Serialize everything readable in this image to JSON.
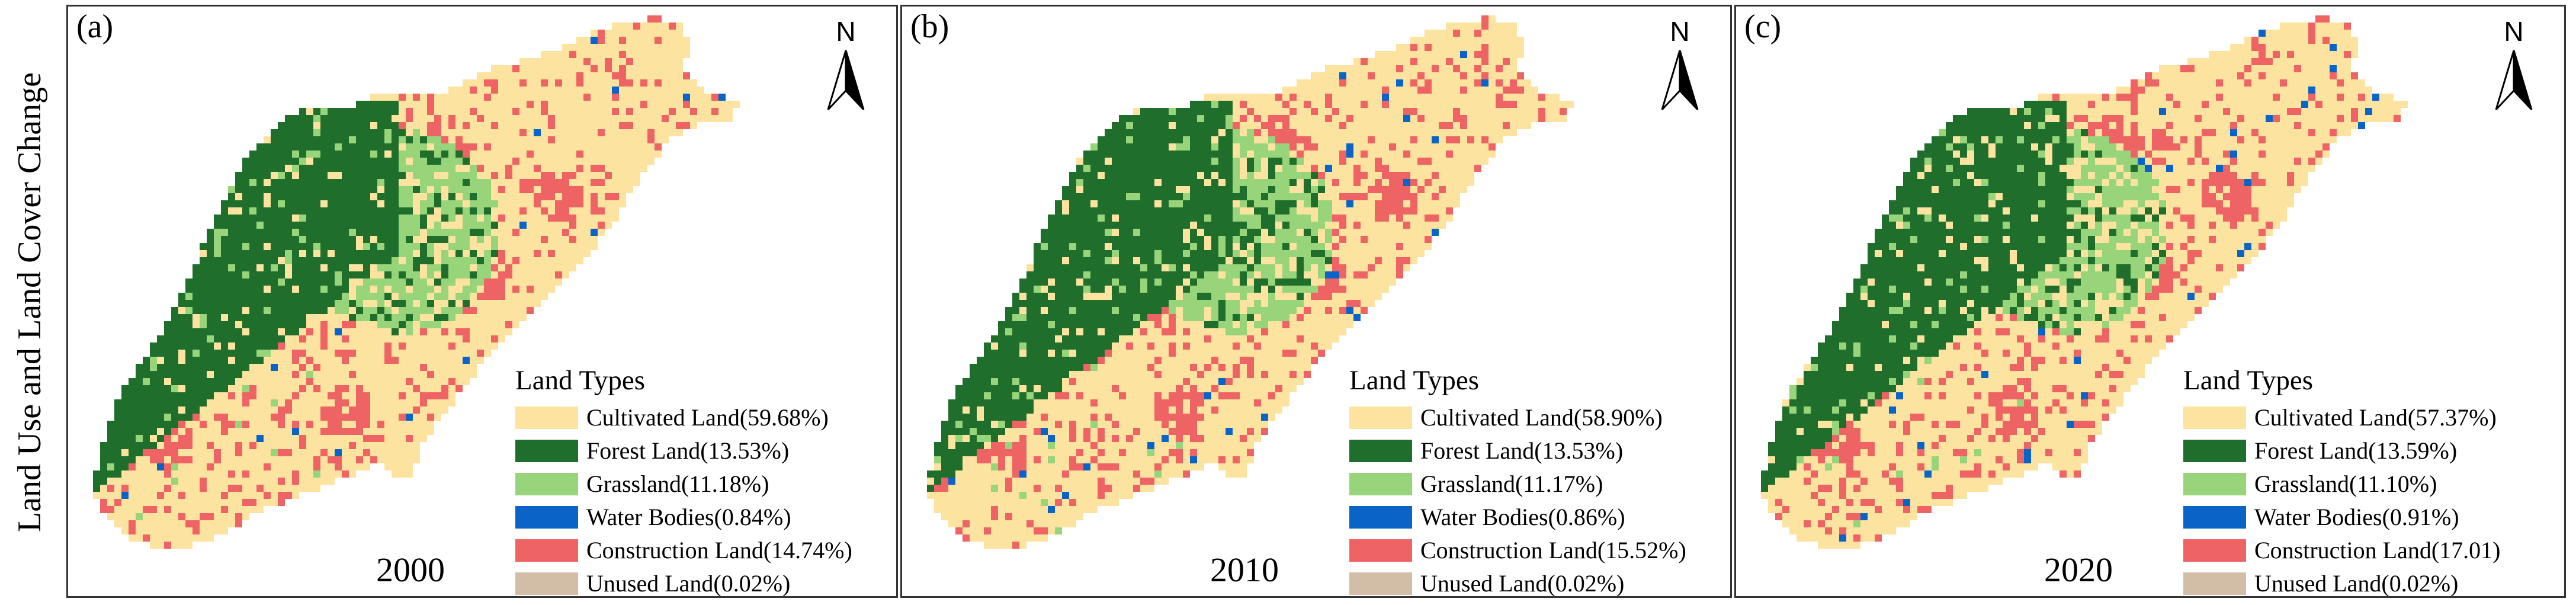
{
  "figure": {
    "ylabel": "Land Use and Land Cover Change",
    "north_label": "N",
    "legend_title": "Land Types",
    "colors": {
      "cultivated": "#fde3a0",
      "forest": "#1f6e2c",
      "grassland": "#98d47a",
      "water": "#0a64c8",
      "construction": "#ee6464",
      "unused": "#d2bea6"
    }
  },
  "panels": [
    {
      "label": "(a)",
      "year": "2000",
      "legend": [
        {
          "text": "Cultivated Land(59.68%)",
          "class": "cultivated",
          "percent": 59.68
        },
        {
          "text": "Forest Land(13.53%)",
          "class": "forest",
          "percent": 13.53
        },
        {
          "text": "Grassland(11.18%)",
          "class": "grassland",
          "percent": 11.18
        },
        {
          "text": "Water Bodies(0.84%)",
          "class": "water",
          "percent": 0.84
        },
        {
          "text": "Construction Land(14.74%)",
          "class": "construction",
          "percent": 14.74
        },
        {
          "text": "Unused Land(0.02%)",
          "class": "unused",
          "percent": 0.02
        }
      ]
    },
    {
      "label": "(b)",
      "year": "2010",
      "legend": [
        {
          "text": "Cultivated Land(58.90%)",
          "class": "cultivated",
          "percent": 58.9
        },
        {
          "text": "Forest Land(13.53%)",
          "class": "forest",
          "percent": 13.53
        },
        {
          "text": "Grassland(11.17%)",
          "class": "grassland",
          "percent": 11.17
        },
        {
          "text": "Water Bodies(0.86%)",
          "class": "water",
          "percent": 0.86
        },
        {
          "text": "Construction Land(15.52%)",
          "class": "construction",
          "percent": 15.52
        },
        {
          "text": "Unused Land(0.02%)",
          "class": "unused",
          "percent": 0.02
        }
      ]
    },
    {
      "label": "(c)",
      "year": "2020",
      "legend": [
        {
          "text": "Cultivated Land(57.37%)",
          "class": "cultivated",
          "percent": 57.37
        },
        {
          "text": "Forest Land(13.59%)",
          "class": "forest",
          "percent": 13.59
        },
        {
          "text": "Grassland(11.10%)",
          "class": "grassland",
          "percent": 11.1
        },
        {
          "text": "Water Bodies(0.91%)",
          "class": "water",
          "percent": 0.91
        },
        {
          "text": "Construction Land(17.01)",
          "class": "construction",
          "percent": 17.01
        },
        {
          "text": "Unused Land(0.02%)",
          "class": "unused",
          "percent": 0.02
        }
      ]
    }
  ]
}
